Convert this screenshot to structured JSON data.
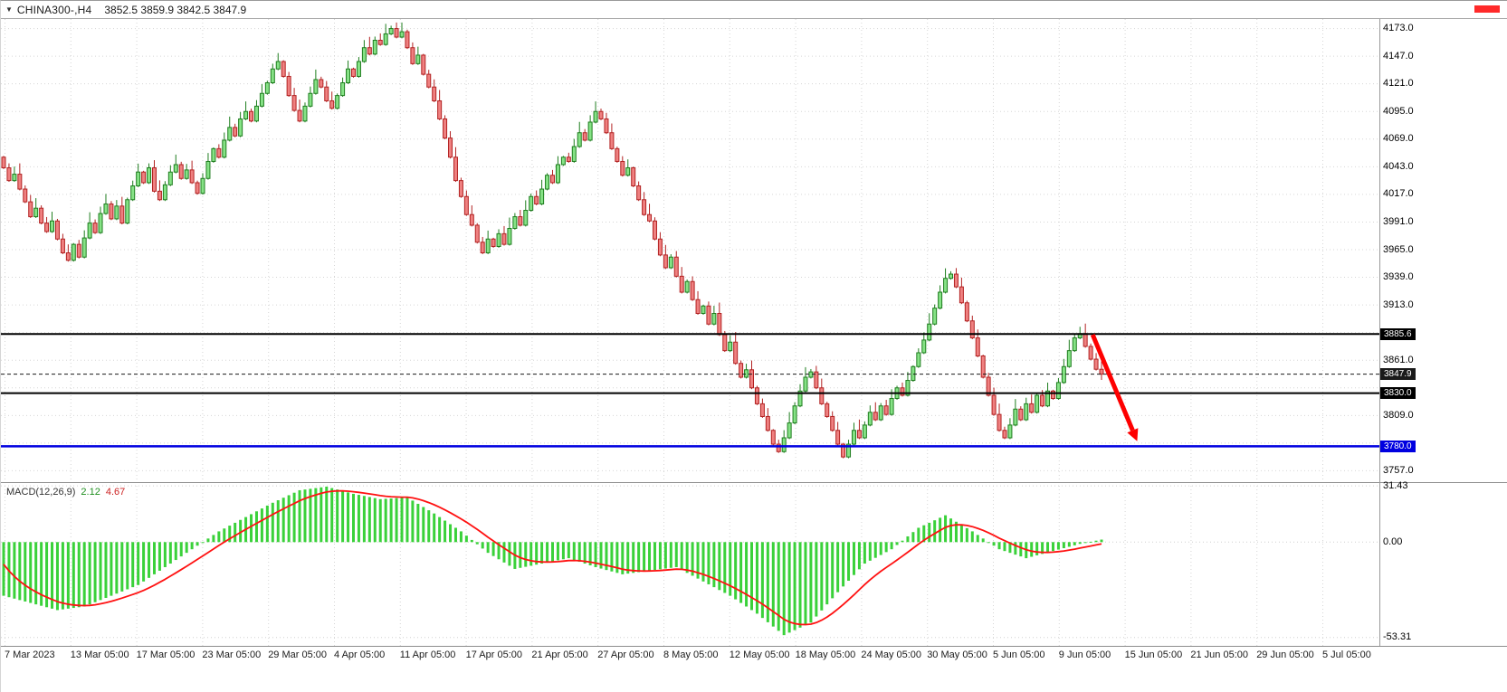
{
  "header": {
    "marker_icon": "▼",
    "symbol_title": "CHINA300-,H4",
    "ohlc_values": "3852.5 3859.9 3842.5 3847.9",
    "top_right_marker_color": "#ff2a2a"
  },
  "chart_data": {
    "type": "candlestick",
    "title": "CHINA300- H4 candlestick chart with MACD(12,26,9)",
    "symbol": "CHINA300-",
    "timeframe": "H4",
    "x_axis": {
      "labels": [
        "7 Mar 2023",
        "13 Mar 05:00",
        "17 Mar 05:00",
        "23 Mar 05:00",
        "29 Mar 05:00",
        "4 Apr 05:00",
        "11 Apr 05:00",
        "17 Apr 05:00",
        "21 Apr 05:00",
        "27 Apr 05:00",
        "8 May 05:00",
        "12 May 05:00",
        "18 May 05:00",
        "24 May 05:00",
        "30 May 05:00",
        "5 Jun 05:00",
        "9 Jun 05:00",
        "15 Jun 05:00",
        "21 Jun 05:00",
        "29 Jun 05:00",
        "5 Jul 05:00"
      ]
    },
    "price": {
      "y_axis": {
        "min": 3748,
        "max": 4182,
        "grid_step": 26,
        "grid_max": 4173,
        "tick_labels": [
          "4173.0",
          "4147.0",
          "4121.0",
          "4095.0",
          "4069.0",
          "4043.0",
          "4017.0",
          "3991.0",
          "3965.0",
          "3939.0",
          "3913.0",
          "3861.0",
          "3809.0",
          "3757.0"
        ]
      },
      "current_bar": {
        "open": 3852.5,
        "high": 3859.9,
        "low": 3842.5,
        "close": 3847.9
      },
      "first_open": 4052,
      "closes": [
        4042,
        4030,
        4036,
        4022,
        4010,
        3996,
        4004,
        3990,
        3982,
        3992,
        3975,
        3962,
        3955,
        3970,
        3958,
        3976,
        3990,
        3981,
        3999,
        4008,
        3994,
        4006,
        3990,
        4012,
        4025,
        4038,
        4028,
        4042,
        4020,
        4012,
        4026,
        4038,
        4045,
        4032,
        4040,
        4028,
        4018,
        4032,
        4048,
        4060,
        4052,
        4068,
        4080,
        4072,
        4088,
        4095,
        4086,
        4100,
        4112,
        4122,
        4135,
        4142,
        4128,
        4110,
        4096,
        4086,
        4100,
        4112,
        4125,
        4118,
        4105,
        4098,
        4110,
        4122,
        4135,
        4128,
        4142,
        4155,
        4149,
        4162,
        4158,
        4168,
        4173,
        4165,
        4170,
        4155,
        4140,
        4148,
        4130,
        4118,
        4105,
        4088,
        4070,
        4052,
        4030,
        4015,
        3998,
        3988,
        3972,
        3962,
        3975,
        3968,
        3980,
        3970,
        3985,
        3996,
        3988,
        4002,
        4015,
        4008,
        4022,
        4035,
        4028,
        4045,
        4052,
        4048,
        4062,
        4075,
        4068,
        4085,
        4095,
        4088,
        4075,
        4060,
        4048,
        4035,
        4042,
        4025,
        4012,
        3998,
        3992,
        3975,
        3960,
        3948,
        3958,
        3940,
        3925,
        3935,
        3918,
        3905,
        3912,
        3895,
        3905,
        3885,
        3870,
        3878,
        3858,
        3845,
        3852,
        3835,
        3820,
        3808,
        3795,
        3782,
        3775,
        3788,
        3802,
        3818,
        3832,
        3845,
        3850,
        3835,
        3820,
        3808,
        3795,
        3782,
        3770,
        3782,
        3795,
        3788,
        3800,
        3812,
        3805,
        3818,
        3810,
        3825,
        3835,
        3828,
        3842,
        3855,
        3868,
        3880,
        3895,
        3910,
        3925,
        3938,
        3942,
        3930,
        3915,
        3898,
        3882,
        3865,
        3845,
        3828,
        3810,
        3795,
        3788,
        3800,
        3815,
        3805,
        3820,
        3812,
        3828,
        3818,
        3832,
        3825,
        3840,
        3855,
        3870,
        3882,
        3886,
        3874,
        3862,
        3852.5,
        3847.9
      ],
      "hlines": [
        {
          "price": 3885.6,
          "label": "3885.6",
          "color": "#000000",
          "width": 2
        },
        {
          "price": 3830.0,
          "label": "3830.0",
          "color": "#000000",
          "width": 2
        },
        {
          "price": 3780.0,
          "label": "3780.0",
          "color": "#0000e0",
          "width": 2.5
        }
      ],
      "current_price_line": {
        "price": 3847.9,
        "label": "3847.9",
        "color": "#1a1a1a"
      },
      "colors": {
        "up_fill": "#86e286",
        "up_border": "#1e7d1e",
        "down_fill": "#ef8181",
        "down_border": "#b22222",
        "grid": "#d6d6d6"
      },
      "annotation_arrow": {
        "color": "#fe0000",
        "x1_frac": 0.792,
        "price1": 3885,
        "x2_frac": 0.821,
        "price2": 3795
      }
    },
    "macd": {
      "label": "MACD(12,26,9)",
      "value_macd": "2.12",
      "value_signal": "4.67",
      "y_axis": {
        "min": -58,
        "max": 32,
        "tick_labels": [
          {
            "value": 31.43,
            "text": "31.43"
          },
          {
            "value": 0,
            "text": "0.00"
          },
          {
            "value": -53.31,
            "text": "-53.31"
          }
        ]
      },
      "anchor_step": 5,
      "macd_anchors": [
        -30,
        -34,
        -38,
        -36,
        -30,
        -24,
        -14,
        -4,
        6,
        14,
        22,
        29,
        31,
        27,
        24,
        25,
        16,
        6,
        -6,
        -15,
        -12,
        -9,
        -14,
        -18,
        -16,
        -14,
        -22,
        -30,
        -40,
        -52,
        -45,
        -28,
        -12,
        -4,
        8,
        15,
        6,
        -4,
        -9,
        -5,
        -1,
        2
      ],
      "signal_seed": -8,
      "colors": {
        "hist": "#3ad13a",
        "signal": "#ff1111"
      }
    }
  }
}
